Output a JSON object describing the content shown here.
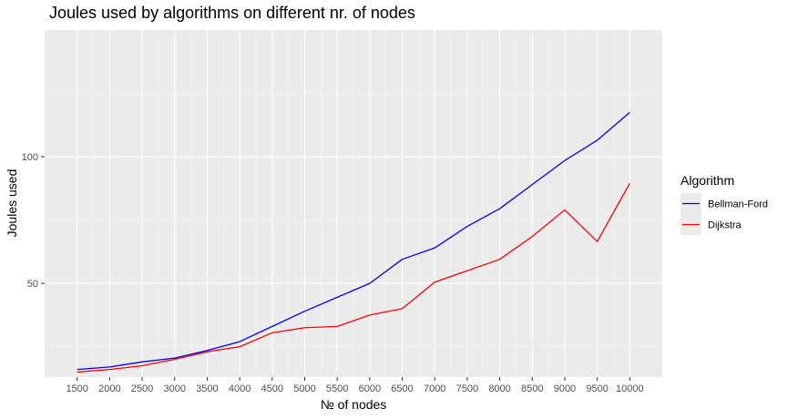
{
  "chart_data": {
    "type": "line",
    "title": "Joules used by algorithms on different nr. of nodes",
    "xlabel": "№ of nodes",
    "ylabel": "Joules used",
    "x": [
      1500,
      2000,
      2500,
      3000,
      3500,
      4000,
      4500,
      5000,
      5500,
      6000,
      6500,
      7000,
      7500,
      8000,
      8500,
      9000,
      9500,
      10000
    ],
    "x_tick_labels": [
      "1500",
      "2000",
      "2500",
      "3000",
      "3500",
      "4000",
      "4500",
      "5000",
      "5500",
      "6000",
      "6500",
      "7000",
      "7500",
      "8000",
      "8500",
      "9000",
      "9500",
      "10000"
    ],
    "y_ticks": [
      50,
      100
    ],
    "y_tick_labels": [
      "50",
      "100"
    ],
    "xlim": [
      1000,
      10500
    ],
    "ylim": [
      13,
      150
    ],
    "grid": true,
    "legend": {
      "title": "Algorithm",
      "placement": "right"
    },
    "series": [
      {
        "name": "Bellman-Ford",
        "color": "#0000ff",
        "values": [
          16,
          17,
          19,
          20.5,
          23.5,
          27,
          33,
          39,
          44.5,
          50,
          59.5,
          64,
          72.5,
          79.5,
          89,
          98.5,
          106.5,
          117.5
        ]
      },
      {
        "name": "Dijkstra",
        "color": "#ff0000",
        "values": [
          15,
          16,
          17.5,
          20,
          23,
          25,
          30.5,
          32.5,
          33,
          37.5,
          40,
          50.5,
          55,
          59.5,
          68.5,
          79,
          66.5,
          89.5
        ]
      }
    ]
  },
  "colors": {
    "panel_background": "#ebebeb",
    "major_grid": "#ffffff",
    "minor_grid": "#f5f5f5"
  }
}
